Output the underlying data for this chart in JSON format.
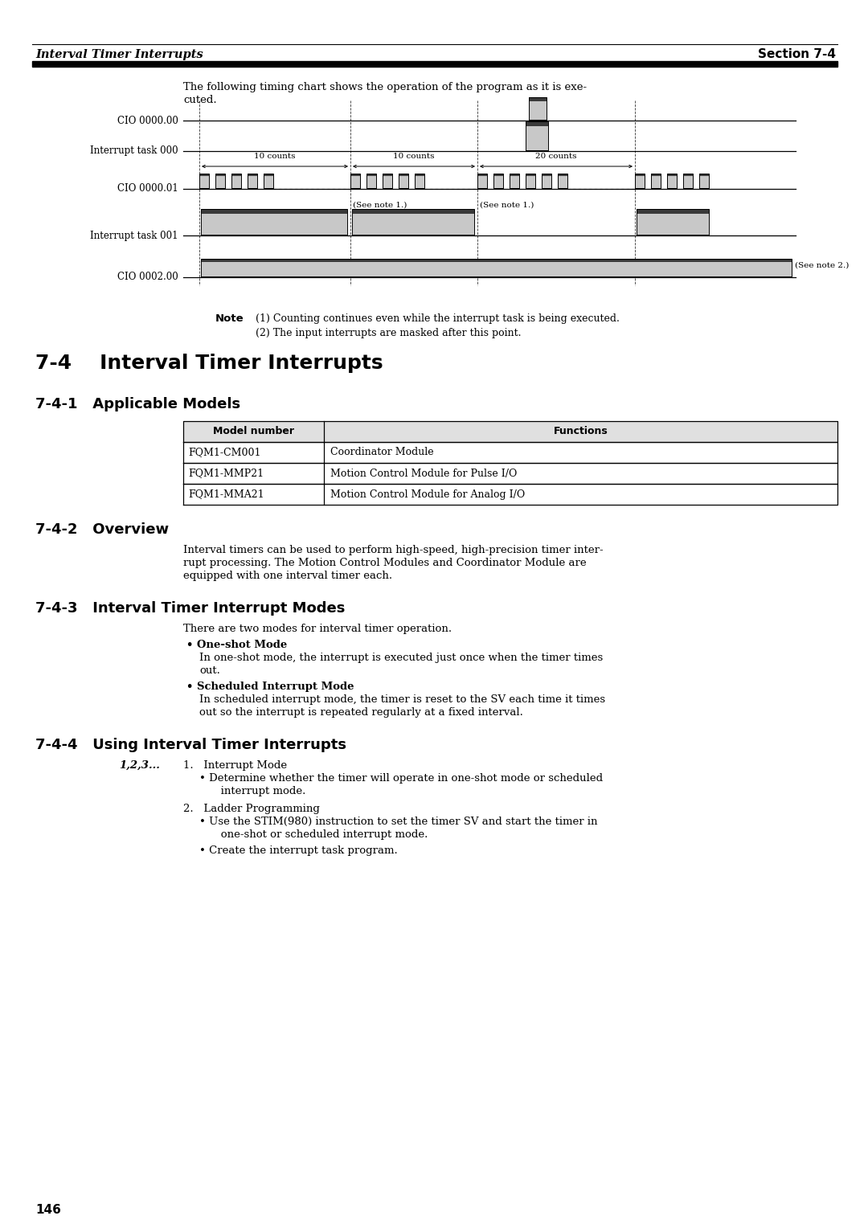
{
  "page_bg": "#ffffff",
  "header_italic_left": "Interval Timer Interrupts",
  "header_bold_right": "Section 7-4",
  "intro_text_line1": "The following timing chart shows the operation of the program as it is exe-",
  "intro_text_line2": "cuted.",
  "note_label": "Note",
  "note1": "(1) Counting continues even while the interrupt task is being executed.",
  "note2": "(2) The input interrupts are masked after this point.",
  "section_74_title": "7-4    Interval Timer Interrupts",
  "section_741_title": "7-4-1   Applicable Models",
  "table_headers": [
    "Model number",
    "Functions"
  ],
  "table_rows": [
    [
      "FQM1-CM001",
      "Coordinator Module"
    ],
    [
      "FQM1-MMP21",
      "Motion Control Module for Pulse I/O"
    ],
    [
      "FQM1-MMA21",
      "Motion Control Module for Analog I/O"
    ]
  ],
  "section_742_title": "7-4-2   Overview",
  "overview_line1": "Interval timers can be used to perform high-speed, high-precision timer inter-",
  "overview_line2": "rupt processing. The Motion Control Modules and Coordinator Module are",
  "overview_line3": "equipped with one interval timer each.",
  "section_743_title": "7-4-3   Interval Timer Interrupt Modes",
  "modes_intro": "There are two modes for interval timer operation.",
  "mode1_title": "• One-shot Mode",
  "mode1_line1": "In one-shot mode, the interrupt is executed just once when the timer times",
  "mode1_line2": "out.",
  "mode2_title": "• Scheduled Interrupt Mode",
  "mode2_line1": "In scheduled interrupt mode, the timer is reset to the SV each time it times",
  "mode2_line2": "out so the interrupt is repeated regularly at a fixed interval.",
  "section_744_title": "7-4-4   Using Interval Timer Interrupts",
  "steps_label": "1,2,3...",
  "step1_num": "1.   Interrupt Mode",
  "step1_bullet": "• Determine whether the timer will operate in one-shot mode or scheduled",
  "step1_bullet2": "   interrupt mode.",
  "step2_num": "2.   Ladder Programming",
  "step2_bullet1a": "• Use the STIM(980) instruction to set the timer SV and start the timer in",
  "step2_bullet1b": "   one-shot or scheduled interrupt mode.",
  "step2_bullet2": "• Create the interrupt task program.",
  "page_number": "146",
  "gray_light": "#c8c8c8",
  "gray_dark": "#3a3a3a",
  "black": "#000000",
  "table_header_bg": "#e0e0e0"
}
